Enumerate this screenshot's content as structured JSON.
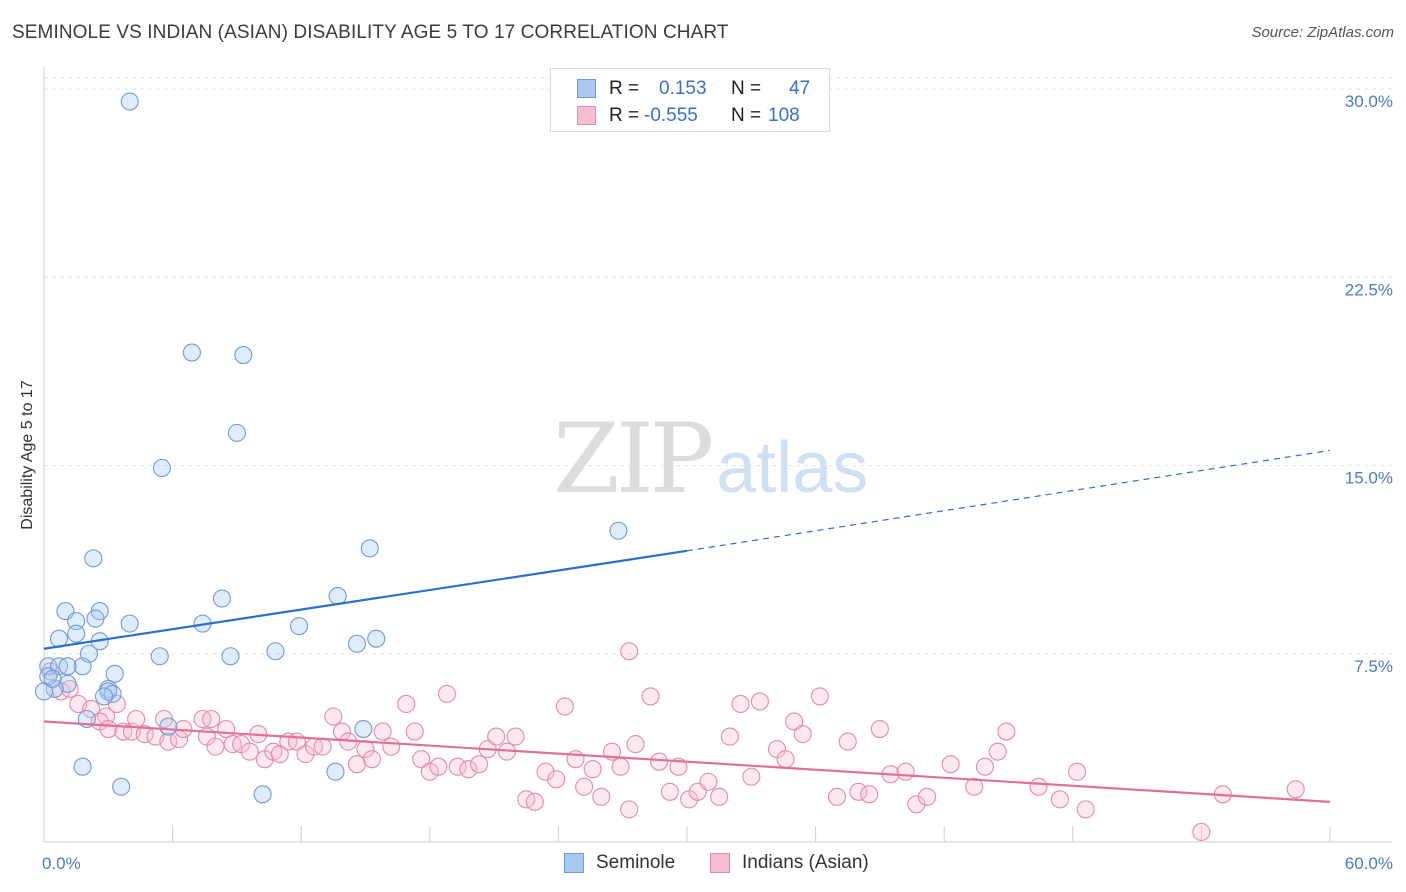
{
  "header": {
    "title": "SEMINOLE VS INDIAN (ASIAN) DISABILITY AGE 5 TO 17 CORRELATION CHART",
    "source": "Source: ZipAtlas.com"
  },
  "watermark": {
    "zip": "ZIP",
    "atlas": "atlas"
  },
  "legend": {
    "rows": [
      {
        "r_label": "R =",
        "r_value": "0.153",
        "n_label": "N =",
        "n_value": "47",
        "color": "#a9c8f0",
        "border": "#6f9ad6"
      },
      {
        "r_label": "R =",
        "r_value": "-0.555",
        "n_label": "N =",
        "n_value": "108",
        "color": "#f7bdd0",
        "border": "#e58aa8"
      }
    ]
  },
  "bottom_legend": {
    "items": [
      {
        "label": "Seminole",
        "color": "#a9c8f0",
        "border": "#6f9ad6"
      },
      {
        "label": "Indians (Asian)",
        "color": "#f7bdd0",
        "border": "#e58aa8"
      }
    ]
  },
  "chart_data": {
    "type": "scatter",
    "title": "SEMINOLE VS INDIAN (ASIAN) DISABILITY AGE 5 TO 17 CORRELATION CHART",
    "xlabel": "",
    "ylabel": "Disability Age 5 to 17",
    "xlim": [
      0,
      60
    ],
    "ylim": [
      0,
      30
    ],
    "x_tick_labels": [
      "0.0%",
      "60.0%"
    ],
    "y_ticks": [
      7.5,
      15.0,
      22.5,
      30.0
    ],
    "y_tick_labels": [
      "7.5%",
      "15.0%",
      "22.5%",
      "30.0%"
    ],
    "grid": "horizontal dashed",
    "legend_placement": "top-center",
    "colors": {
      "seminole": "#6f9ad6",
      "indian": "#e58aa8",
      "seminole_line": "#2a6fcc",
      "indian_line": "#e07099"
    },
    "series": [
      {
        "name": "Seminole",
        "r": 0.153,
        "n": 47,
        "trend": {
          "x_start": 0,
          "y_start": 7.7,
          "x_solid_end": 30,
          "y_solid_end": 11.6,
          "x_dashed_end": 60,
          "y_dashed_end": 15.6
        },
        "points": [
          [
            4.0,
            29.5
          ],
          [
            6.9,
            19.5
          ],
          [
            9.3,
            19.4
          ],
          [
            9.0,
            16.3
          ],
          [
            5.5,
            14.9
          ],
          [
            26.8,
            12.4
          ],
          [
            15.2,
            11.7
          ],
          [
            2.3,
            11.3
          ],
          [
            13.7,
            9.8
          ],
          [
            8.3,
            9.7
          ],
          [
            1.0,
            9.2
          ],
          [
            2.6,
            9.2
          ],
          [
            1.5,
            8.8
          ],
          [
            4.0,
            8.7
          ],
          [
            7.4,
            8.7
          ],
          [
            11.9,
            8.6
          ],
          [
            2.4,
            8.9
          ],
          [
            0.7,
            8.1
          ],
          [
            1.5,
            8.3
          ],
          [
            2.6,
            8.0
          ],
          [
            15.5,
            8.1
          ],
          [
            14.6,
            7.9
          ],
          [
            10.8,
            7.6
          ],
          [
            5.4,
            7.4
          ],
          [
            8.7,
            7.4
          ],
          [
            0.2,
            7.0
          ],
          [
            0.7,
            7.0
          ],
          [
            1.8,
            7.0
          ],
          [
            1.1,
            7.0
          ],
          [
            2.1,
            7.5
          ],
          [
            3.3,
            6.7
          ],
          [
            1.1,
            6.3
          ],
          [
            0.5,
            6.1
          ],
          [
            3.0,
            6.1
          ],
          [
            3.0,
            6.0
          ],
          [
            3.2,
            5.9
          ],
          [
            2.8,
            5.8
          ],
          [
            0.2,
            6.6
          ],
          [
            0.0,
            6.0
          ],
          [
            2.0,
            4.9
          ],
          [
            5.8,
            4.6
          ],
          [
            14.9,
            4.5
          ],
          [
            1.8,
            3.0
          ],
          [
            3.6,
            2.2
          ],
          [
            10.2,
            1.9
          ],
          [
            13.6,
            2.8
          ],
          [
            0.4,
            6.5
          ]
        ]
      },
      {
        "name": "Indians (Asian)",
        "r": -0.555,
        "n": 108,
        "trend": {
          "x_start": 0,
          "y_start": 4.8,
          "x_end": 60,
          "y_end": 1.6
        },
        "points": [
          [
            0.3,
            6.8
          ],
          [
            0.8,
            6.0
          ],
          [
            1.2,
            6.1
          ],
          [
            1.6,
            5.5
          ],
          [
            2.2,
            5.3
          ],
          [
            2.9,
            5.0
          ],
          [
            3.4,
            5.5
          ],
          [
            2.6,
            4.8
          ],
          [
            3.0,
            4.5
          ],
          [
            3.7,
            4.4
          ],
          [
            4.1,
            4.4
          ],
          [
            4.3,
            4.9
          ],
          [
            4.7,
            4.3
          ],
          [
            5.2,
            4.2
          ],
          [
            5.6,
            4.9
          ],
          [
            5.8,
            4.0
          ],
          [
            6.3,
            4.1
          ],
          [
            6.5,
            4.5
          ],
          [
            7.4,
            4.9
          ],
          [
            7.8,
            4.9
          ],
          [
            7.6,
            4.2
          ],
          [
            8.0,
            3.8
          ],
          [
            8.5,
            4.5
          ],
          [
            8.8,
            3.9
          ],
          [
            9.2,
            3.9
          ],
          [
            9.6,
            3.6
          ],
          [
            10.0,
            4.3
          ],
          [
            10.3,
            3.3
          ],
          [
            10.7,
            3.6
          ],
          [
            11.0,
            3.5
          ],
          [
            11.4,
            4.0
          ],
          [
            11.8,
            4.0
          ],
          [
            12.2,
            3.5
          ],
          [
            12.6,
            3.8
          ],
          [
            13.0,
            3.8
          ],
          [
            13.5,
            5.0
          ],
          [
            13.9,
            4.4
          ],
          [
            14.2,
            4.0
          ],
          [
            14.6,
            3.1
          ],
          [
            15.0,
            3.7
          ],
          [
            15.3,
            3.3
          ],
          [
            15.8,
            4.4
          ],
          [
            16.2,
            3.8
          ],
          [
            16.9,
            5.5
          ],
          [
            17.3,
            4.4
          ],
          [
            17.6,
            3.3
          ],
          [
            18.0,
            2.8
          ],
          [
            18.4,
            3.0
          ],
          [
            18.8,
            5.9
          ],
          [
            19.3,
            3.0
          ],
          [
            19.8,
            2.9
          ],
          [
            20.3,
            3.1
          ],
          [
            20.7,
            3.7
          ],
          [
            21.1,
            4.2
          ],
          [
            21.6,
            3.6
          ],
          [
            22.0,
            4.2
          ],
          [
            22.5,
            1.7
          ],
          [
            22.9,
            1.6
          ],
          [
            23.4,
            2.8
          ],
          [
            23.9,
            2.5
          ],
          [
            24.3,
            5.4
          ],
          [
            24.8,
            3.3
          ],
          [
            25.2,
            2.2
          ],
          [
            25.6,
            2.9
          ],
          [
            26.0,
            1.8
          ],
          [
            26.5,
            3.6
          ],
          [
            26.9,
            3.0
          ],
          [
            27.3,
            1.3
          ],
          [
            27.6,
            3.9
          ],
          [
            27.3,
            7.6
          ],
          [
            28.3,
            5.8
          ],
          [
            28.7,
            3.2
          ],
          [
            29.2,
            2.0
          ],
          [
            29.6,
            3.0
          ],
          [
            30.1,
            1.7
          ],
          [
            30.5,
            2.0
          ],
          [
            31.0,
            2.4
          ],
          [
            31.5,
            1.8
          ],
          [
            32.0,
            4.2
          ],
          [
            32.5,
            5.5
          ],
          [
            33.0,
            2.6
          ],
          [
            33.4,
            5.6
          ],
          [
            34.2,
            3.7
          ],
          [
            34.6,
            3.3
          ],
          [
            35.0,
            4.8
          ],
          [
            35.4,
            4.3
          ],
          [
            36.2,
            5.8
          ],
          [
            37.0,
            1.8
          ],
          [
            37.5,
            4.0
          ],
          [
            38.0,
            2.0
          ],
          [
            38.5,
            1.9
          ],
          [
            39.0,
            4.5
          ],
          [
            39.5,
            2.7
          ],
          [
            40.2,
            2.8
          ],
          [
            40.7,
            1.5
          ],
          [
            41.2,
            1.8
          ],
          [
            42.3,
            3.1
          ],
          [
            43.4,
            2.2
          ],
          [
            43.9,
            3.0
          ],
          [
            44.5,
            3.6
          ],
          [
            44.9,
            4.4
          ],
          [
            46.4,
            2.2
          ],
          [
            47.4,
            1.7
          ],
          [
            48.6,
            1.3
          ],
          [
            48.2,
            2.8
          ],
          [
            54.0,
            0.4
          ],
          [
            55.0,
            1.9
          ],
          [
            58.4,
            2.1
          ]
        ]
      }
    ]
  }
}
